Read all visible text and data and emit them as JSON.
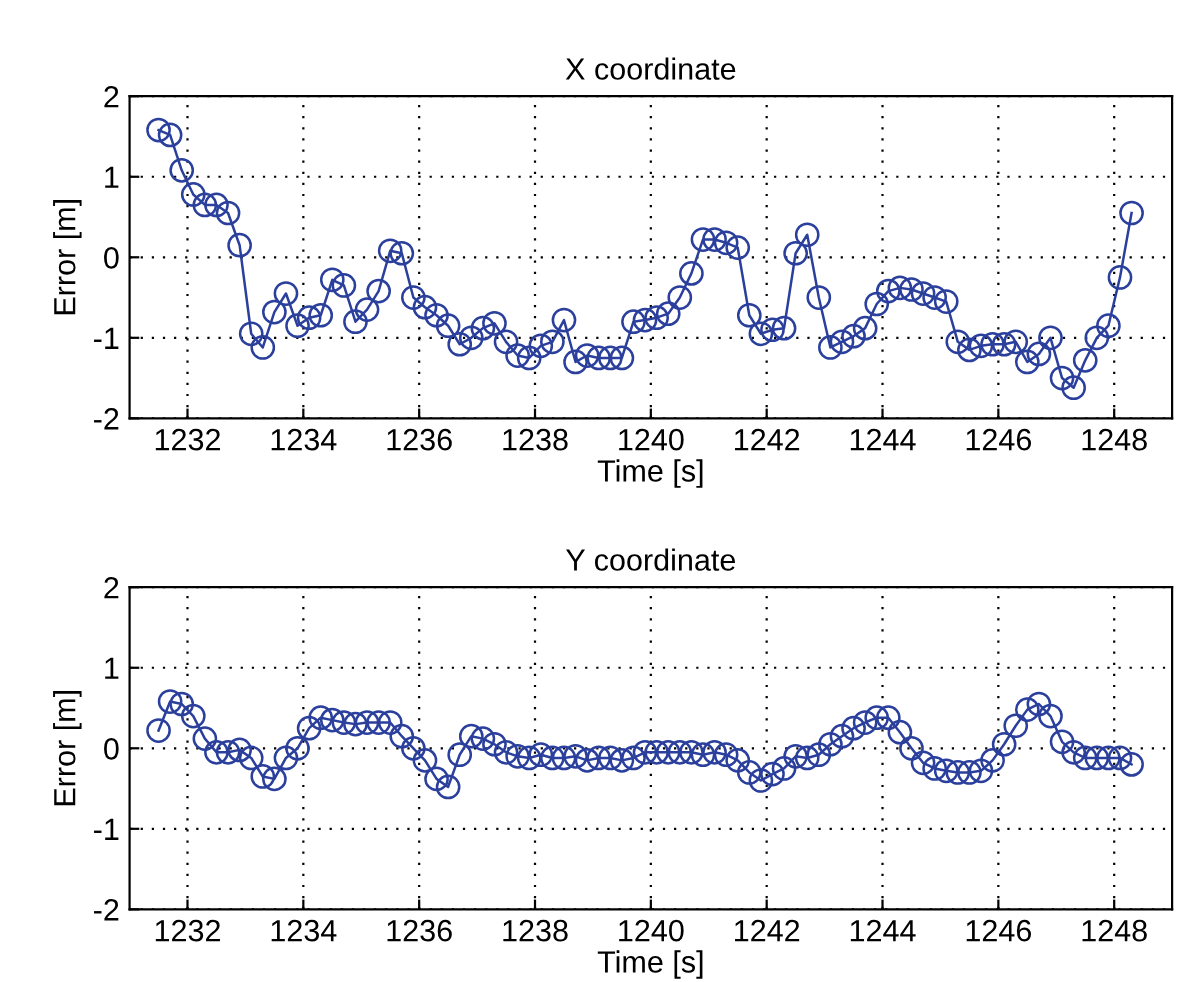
{
  "chart_data": [
    {
      "type": "line",
      "title": "X coordinate",
      "xlabel": "Time [s]",
      "ylabel": "Error [m]",
      "xlim": [
        1231,
        1249
      ],
      "xticks": [
        1232,
        1234,
        1236,
        1238,
        1240,
        1242,
        1244,
        1246,
        1248
      ],
      "ylim": [
        -2,
        2
      ],
      "yticks": [
        -2,
        -1,
        0,
        1,
        2
      ],
      "grid": true,
      "marker": "circle",
      "line_style": "solid",
      "series": [
        {
          "color": "#2b3f9c",
          "x": [
            1231.5,
            1231.7,
            1231.9,
            1232.1,
            1232.3,
            1232.5,
            1232.7,
            1232.9,
            1233.1,
            1233.3,
            1233.5,
            1233.7,
            1233.9,
            1234.1,
            1234.3,
            1234.5,
            1234.7,
            1234.9,
            1235.1,
            1235.3,
            1235.5,
            1235.7,
            1235.9,
            1236.1,
            1236.3,
            1236.5,
            1236.7,
            1236.9,
            1237.1,
            1237.3,
            1237.5,
            1237.7,
            1237.9,
            1238.1,
            1238.3,
            1238.5,
            1238.7,
            1238.9,
            1239.1,
            1239.3,
            1239.5,
            1239.7,
            1239.9,
            1240.1,
            1240.3,
            1240.5,
            1240.7,
            1240.9,
            1241.1,
            1241.3,
            1241.5,
            1241.7,
            1241.9,
            1242.1,
            1242.3,
            1242.5,
            1242.7,
            1242.9,
            1243.1,
            1243.3,
            1243.5,
            1243.7,
            1243.9,
            1244.1,
            1244.3,
            1244.5,
            1244.7,
            1244.9,
            1245.1,
            1245.3,
            1245.5,
            1245.7,
            1245.9,
            1246.1,
            1246.3,
            1246.5,
            1246.7,
            1246.9,
            1247.1,
            1247.3,
            1247.5,
            1247.7,
            1247.9,
            1248.1,
            1248.3
          ],
          "values": [
            1.58,
            1.52,
            1.08,
            0.78,
            0.65,
            0.65,
            0.55,
            0.15,
            -0.95,
            -1.12,
            -0.68,
            -0.45,
            -0.85,
            -0.75,
            -0.72,
            -0.28,
            -0.35,
            -0.8,
            -0.65,
            -0.42,
            0.08,
            0.05,
            -0.5,
            -0.62,
            -0.72,
            -0.85,
            -1.08,
            -1.0,
            -0.88,
            -0.82,
            -1.05,
            -1.22,
            -1.25,
            -1.1,
            -1.05,
            -0.78,
            -1.3,
            -1.22,
            -1.25,
            -1.25,
            -1.25,
            -0.8,
            -0.78,
            -0.75,
            -0.7,
            -0.5,
            -0.2,
            0.22,
            0.22,
            0.18,
            0.12,
            -0.72,
            -0.95,
            -0.9,
            -0.88,
            0.05,
            0.28,
            -0.5,
            -1.12,
            -1.05,
            -0.98,
            -0.88,
            -0.58,
            -0.42,
            -0.38,
            -0.4,
            -0.45,
            -0.5,
            -0.55,
            -1.05,
            -1.15,
            -1.1,
            -1.08,
            -1.08,
            -1.05,
            -1.3,
            -1.2,
            -1.0,
            -1.5,
            -1.62,
            -1.28,
            -1.0,
            -0.85,
            -0.25,
            0.55
          ]
        }
      ]
    },
    {
      "type": "line",
      "title": "Y coordinate",
      "xlabel": "Time [s]",
      "ylabel": "Error [m]",
      "xlim": [
        1231,
        1249
      ],
      "xticks": [
        1232,
        1234,
        1236,
        1238,
        1240,
        1242,
        1244,
        1246,
        1248
      ],
      "ylim": [
        -2,
        2
      ],
      "yticks": [
        -2,
        -1,
        0,
        1,
        2
      ],
      "grid": true,
      "marker": "circle",
      "line_style": "solid",
      "series": [
        {
          "color": "#2b3f9c",
          "x": [
            1231.5,
            1231.7,
            1231.9,
            1232.1,
            1232.3,
            1232.5,
            1232.7,
            1232.9,
            1233.1,
            1233.3,
            1233.5,
            1233.7,
            1233.9,
            1234.1,
            1234.3,
            1234.5,
            1234.7,
            1234.9,
            1235.1,
            1235.3,
            1235.5,
            1235.7,
            1235.9,
            1236.1,
            1236.3,
            1236.5,
            1236.7,
            1236.9,
            1237.1,
            1237.3,
            1237.5,
            1237.7,
            1237.9,
            1238.1,
            1238.3,
            1238.5,
            1238.7,
            1238.9,
            1239.1,
            1239.3,
            1239.5,
            1239.7,
            1239.9,
            1240.1,
            1240.3,
            1240.5,
            1240.7,
            1240.9,
            1241.1,
            1241.3,
            1241.5,
            1241.7,
            1241.9,
            1242.1,
            1242.3,
            1242.5,
            1242.7,
            1242.9,
            1243.1,
            1243.3,
            1243.5,
            1243.7,
            1243.9,
            1244.1,
            1244.3,
            1244.5,
            1244.7,
            1244.9,
            1245.1,
            1245.3,
            1245.5,
            1245.7,
            1245.9,
            1246.1,
            1246.3,
            1246.5,
            1246.7,
            1246.9,
            1247.1,
            1247.3,
            1247.5,
            1247.7,
            1247.9,
            1248.1,
            1248.3
          ],
          "values": [
            0.22,
            0.58,
            0.55,
            0.4,
            0.12,
            -0.05,
            -0.05,
            -0.02,
            -0.12,
            -0.35,
            -0.38,
            -0.12,
            0.0,
            0.25,
            0.38,
            0.35,
            0.32,
            0.3,
            0.32,
            0.32,
            0.32,
            0.15,
            0.0,
            -0.15,
            -0.38,
            -0.48,
            -0.08,
            0.15,
            0.12,
            0.05,
            -0.05,
            -0.1,
            -0.12,
            -0.08,
            -0.12,
            -0.12,
            -0.1,
            -0.15,
            -0.12,
            -0.12,
            -0.15,
            -0.12,
            -0.05,
            -0.05,
            -0.05,
            -0.05,
            -0.05,
            -0.08,
            -0.05,
            -0.08,
            -0.15,
            -0.3,
            -0.4,
            -0.32,
            -0.25,
            -0.1,
            -0.12,
            -0.08,
            0.05,
            0.15,
            0.25,
            0.32,
            0.38,
            0.38,
            0.2,
            0.0,
            -0.18,
            -0.25,
            -0.28,
            -0.3,
            -0.3,
            -0.28,
            -0.15,
            0.05,
            0.28,
            0.48,
            0.55,
            0.4,
            0.08,
            -0.05,
            -0.12,
            -0.12,
            -0.12,
            -0.12,
            -0.2
          ]
        }
      ]
    }
  ]
}
